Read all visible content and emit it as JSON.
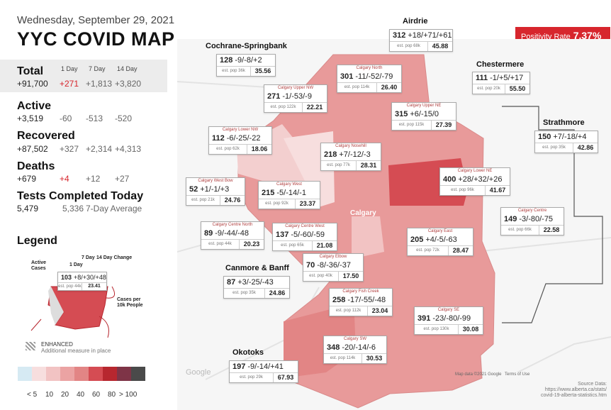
{
  "header": {
    "date": "Wednesday, September 29, 2021",
    "title": "YYC COVID MAP"
  },
  "positivity": {
    "label": "Positivity Rate",
    "value": "7.37%"
  },
  "summary": {
    "col_headers": [
      "1 Day",
      "7 Day",
      "14 Day"
    ],
    "total": {
      "label": "Total",
      "value": "+91,700",
      "d1": "+271",
      "d7": "+1,813",
      "d14": "+3,820"
    },
    "active": {
      "label": "Active",
      "value": "+3,519",
      "d1": "-60",
      "d7": "-513",
      "d14": "-520"
    },
    "recovered": {
      "label": "Recovered",
      "value": "+87,502",
      "d1": "+327",
      "d7": "+2,314",
      "d14": "+4,313"
    },
    "deaths": {
      "label": "Deaths",
      "value": "+679",
      "d1": "+4",
      "d7": "+12",
      "d14": "+27"
    },
    "tests": {
      "label": "Tests Completed Today",
      "value": "5,479",
      "avg_value": "5,336",
      "avg_label": "7-Day Average"
    }
  },
  "legend": {
    "title": "Legend",
    "active_cases": "Active Cases",
    "one_day": "1 Day",
    "seven_day": "7 Day",
    "change14": "14 Day Change",
    "sample_top": "103",
    "sample_changes": "+8/+30/+48",
    "sample_pop": "est. pop 44k",
    "sample_rate": "23.41",
    "cases_per": "Cases per 10k People",
    "enhanced": "ENHANCED",
    "enhanced_sub": "Additional measure in place",
    "scale_colors": [
      "#d6eaf3",
      "#f7dede",
      "#f2c3c3",
      "#eba3a3",
      "#e28585",
      "#d54c53",
      "#b7272f",
      "#7e3447",
      "#4a4a4a"
    ],
    "scale_labels": [
      "< 5",
      "10",
      "20",
      "40",
      "60",
      "80",
      "> 100"
    ]
  },
  "regions": {
    "airdrie": {
      "name": "Airdrie",
      "active": "312",
      "changes": "+18/+71/+61",
      "pop": "est. pop 68k",
      "rate": "45.88"
    },
    "cochrane": {
      "name": "Cochrane-Springbank",
      "active": "128",
      "changes": "-9/-8/+2",
      "pop": "est. pop 36k",
      "rate": "35.56"
    },
    "chestermere": {
      "name": "Chestermere",
      "active": "111",
      "changes": "-1/+5/+17",
      "pop": "est. pop 20k",
      "rate": "55.50"
    },
    "strathmore": {
      "name": "Strathmore",
      "active": "150",
      "changes": "+7/-18/+4",
      "pop": "est. pop 35k",
      "rate": "42.86"
    },
    "canmore": {
      "name": "Canmore & Banff",
      "active": "87",
      "changes": "+3/-25/-43",
      "pop": "est. pop 35k",
      "rate": "24.86"
    },
    "okotoks": {
      "name": "Okotoks",
      "active": "197",
      "changes": "-9/-14/+41",
      "pop": "est. pop 29k",
      "rate": "67.93"
    }
  },
  "areas": {
    "north": {
      "sub": "Calgary North",
      "active": "301",
      "changes": "-11/-52/-79",
      "pop": "est. pop 114k",
      "rate": "26.40"
    },
    "upper_nw": {
      "sub": "Calgary Upper NW",
      "active": "271",
      "changes": "-1/-53/-9",
      "pop": "est. pop 122k",
      "rate": "22.21"
    },
    "upper_ne": {
      "sub": "Calgary Upper NE",
      "active": "315",
      "changes": "+6/-15/0",
      "pop": "est. pop 115k",
      "rate": "27.39"
    },
    "lower_nw": {
      "sub": "Calgary Lower NW",
      "active": "112",
      "changes": "-6/-25/-22",
      "pop": "est. pop 62k",
      "rate": "18.06"
    },
    "nosehill": {
      "sub": "Calgary Nosehill",
      "active": "218",
      "changes": "+7/-12/-3",
      "pop": "est. pop 77k",
      "rate": "28.31"
    },
    "lower_ne": {
      "sub": "Calgary Lower NE",
      "active": "400",
      "changes": "+28/+32/+26",
      "pop": "est. pop 96k",
      "rate": "41.67"
    },
    "west_bow": {
      "sub": "Calgary West Bow",
      "active": "52",
      "changes": "+1/-1/+3",
      "pop": "est. pop 21k",
      "rate": "24.76"
    },
    "west": {
      "sub": "Calgary West",
      "active": "215",
      "changes": "-5/-14/-1",
      "pop": "est. pop 92k",
      "rate": "23.37"
    },
    "centre": {
      "sub": "Calgary Centre",
      "active": "149",
      "changes": "-3/-80/-75",
      "pop": "est. pop 66k",
      "rate": "22.58"
    },
    "centre_north": {
      "sub": "Calgary Centre North",
      "active": "89",
      "changes": "-9/-44/-48",
      "pop": "est. pop 44k",
      "rate": "20.23"
    },
    "centre_west": {
      "sub": "Calgary Centre West",
      "active": "137",
      "changes": "-5/-60/-59",
      "pop": "est. pop 65k",
      "rate": "21.08"
    },
    "east": {
      "sub": "Calgary East",
      "active": "205",
      "changes": "+4/-5/-63",
      "pop": "est. pop 72k",
      "rate": "28.47"
    },
    "elbow": {
      "sub": "Calgary Elbow",
      "active": "70",
      "changes": "-8/-36/-37",
      "pop": "est. pop 40k",
      "rate": "17.50"
    },
    "fish_creek": {
      "sub": "Calgary Fish Creek",
      "active": "258",
      "changes": "-17/-55/-48",
      "pop": "est. pop 112k",
      "rate": "23.04"
    },
    "se": {
      "sub": "Calgary SE",
      "active": "391",
      "changes": "-23/-80/-99",
      "pop": "est. pop 130k",
      "rate": "30.08"
    },
    "sw": {
      "sub": "Calgary SW",
      "active": "348",
      "changes": "-20/-14/-6",
      "pop": "est. pop 114k",
      "rate": "30.53"
    }
  },
  "map_labels": {
    "calgary": "Calgary",
    "google": "Google",
    "map_data": "Map data ©2021 Google",
    "terms": "Terms of Use"
  },
  "source": {
    "l1": "Source Data:",
    "l2": "https://www.alberta.ca/stats/",
    "l3": "covid-19-alberta-statistics.htm"
  }
}
